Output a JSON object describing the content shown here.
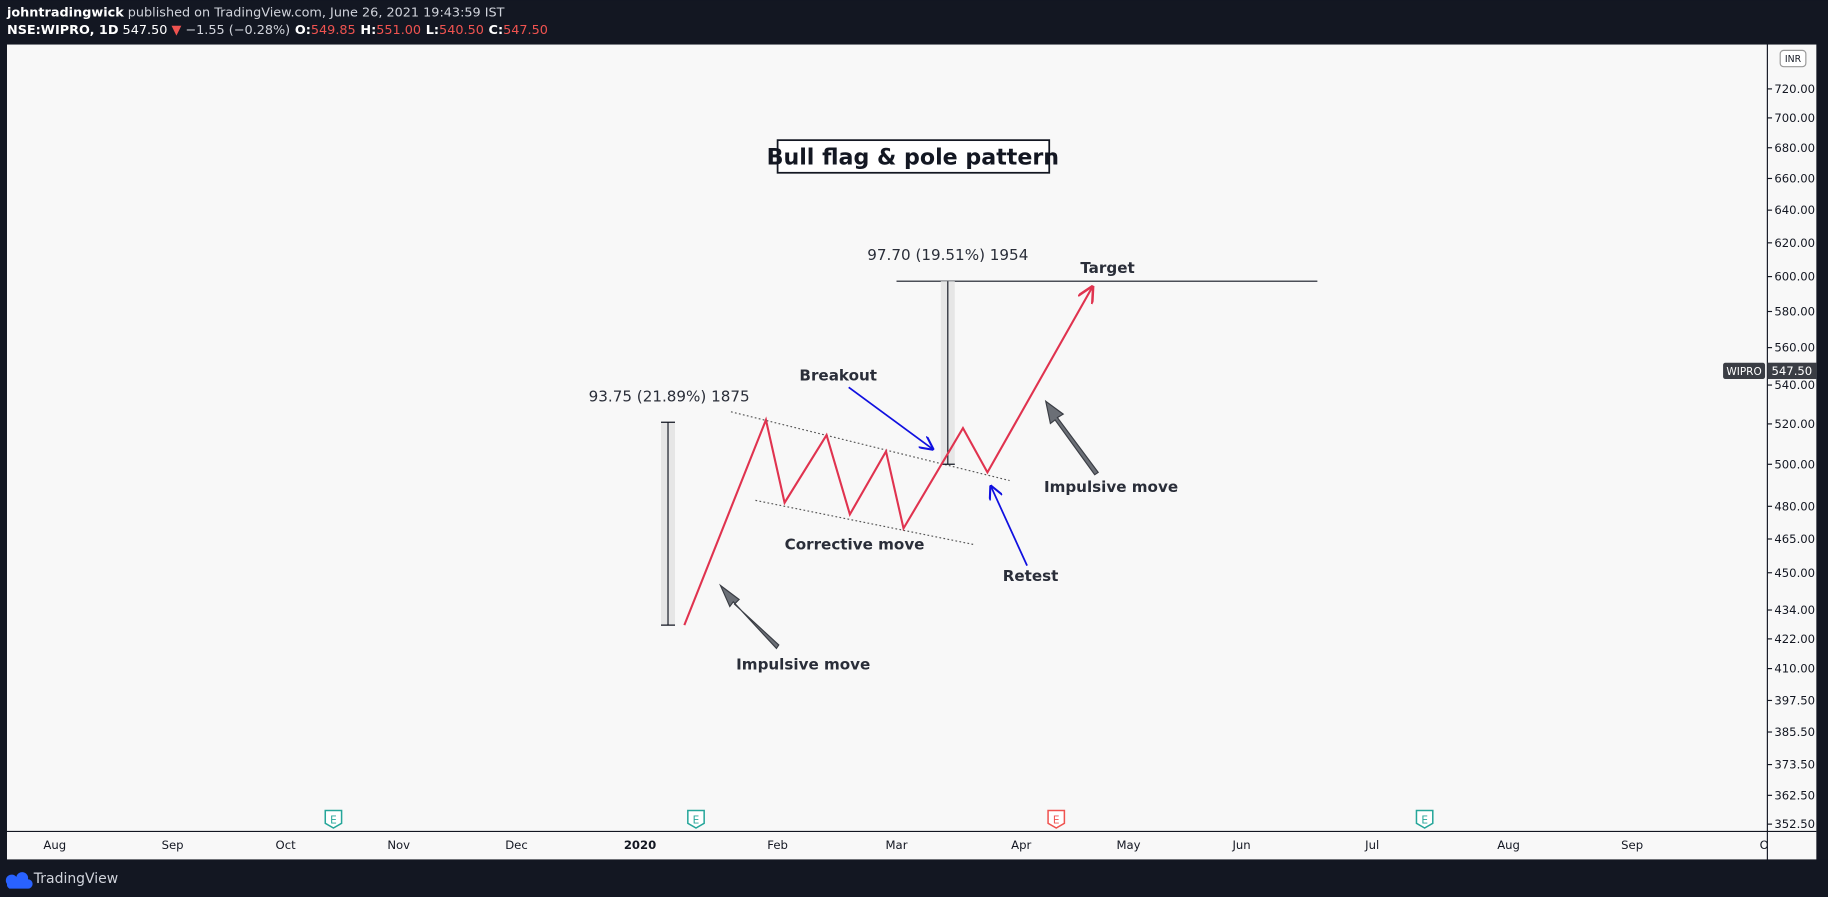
{
  "header": {
    "author": "johntradingwick",
    "published": "published on TradingView.com, June 26, 2021 19:43:59 IST",
    "symbol": "NSE:WIPRO, 1D",
    "last": "547.50",
    "direction": "▼",
    "change": "−1.55 (−0.28%)",
    "ohlc": [
      {
        "label": "O:",
        "value": "549.85"
      },
      {
        "label": "H:",
        "value": "551.00"
      },
      {
        "label": "L:",
        "value": "540.50"
      },
      {
        "label": "C:",
        "value": "547.50"
      }
    ]
  },
  "title": "Bull flag & pole pattern",
  "annotations": {
    "target_measure": "97.70 (19.51%) 1954",
    "pole_measure": "93.75 (21.89%) 1875",
    "target": "Target",
    "breakout": "Breakout",
    "impulsive_move_upper": "Impulsive move",
    "corrective_move": "Corrective move",
    "retest": "Retest",
    "impulsive_move_lower": "Impulsive move"
  },
  "price_axis": {
    "currency": "INR",
    "scale": "log",
    "range": [
      350,
      750
    ],
    "ticks": [
      {
        "value": 720,
        "label": "720.00"
      },
      {
        "value": 700,
        "label": "700.00"
      },
      {
        "value": 680,
        "label": "680.00"
      },
      {
        "value": 660,
        "label": "660.00"
      },
      {
        "value": 640,
        "label": "640.00"
      },
      {
        "value": 620,
        "label": "620.00"
      },
      {
        "value": 600,
        "label": "600.00"
      },
      {
        "value": 580,
        "label": "580.00"
      },
      {
        "value": 560,
        "label": "560.00"
      },
      {
        "value": 540,
        "label": "540.00"
      },
      {
        "value": 520,
        "label": "520.00"
      },
      {
        "value": 500,
        "label": "500.00"
      },
      {
        "value": 480,
        "label": "480.00"
      },
      {
        "value": 465,
        "label": "465.00"
      },
      {
        "value": 450,
        "label": "450.00"
      },
      {
        "value": 434,
        "label": "434.00"
      },
      {
        "value": 422,
        "label": "422.00"
      },
      {
        "value": 410,
        "label": "410.00"
      },
      {
        "value": 397.5,
        "label": "397.50"
      },
      {
        "value": 385.5,
        "label": "385.50"
      },
      {
        "value": 373.5,
        "label": "373.50"
      },
      {
        "value": 362.5,
        "label": "362.50"
      },
      {
        "value": 352.5,
        "label": "352.50"
      }
    ],
    "price_label": {
      "symbol": "WIPRO",
      "value": 547.5,
      "label": "547.50"
    }
  },
  "time_axis": {
    "labels": [
      "Aug",
      "Sep",
      "Oct",
      "Nov",
      "Dec",
      "2020",
      "Feb",
      "Mar",
      "Apr",
      "May",
      "Jun",
      "Jul",
      "Aug",
      "Sep",
      "Oct"
    ]
  },
  "earnings": [
    "E",
    "E",
    "E",
    "E"
  ],
  "footer": {
    "brand": "TradingView"
  }
}
